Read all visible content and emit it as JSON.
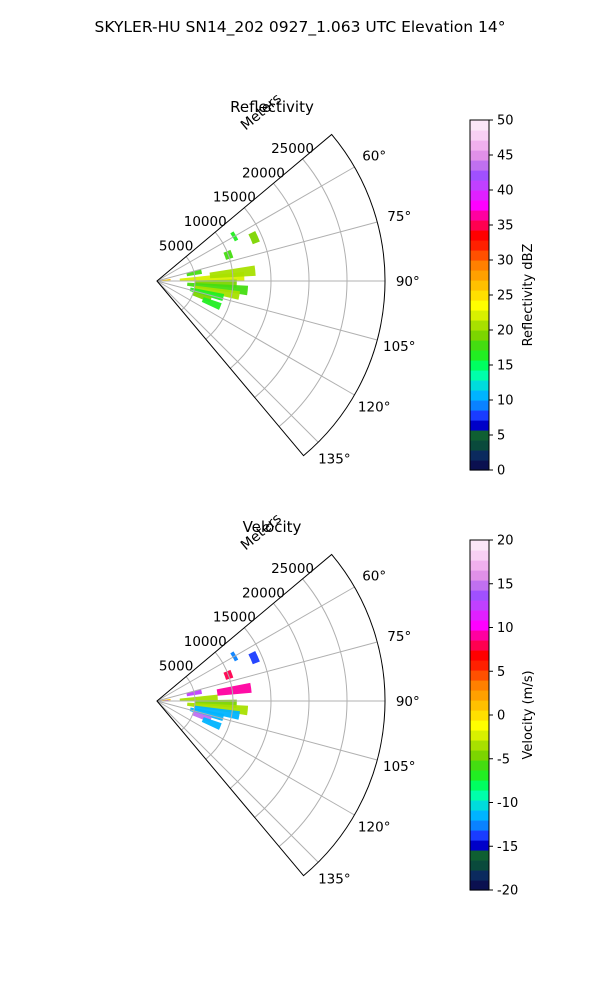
{
  "figure": {
    "suptitle": "SKYLER-HU  SN14_202  0927_1.063 UTC Elevation 14°"
  },
  "chart_data": [
    {
      "type": "polar-sector-heatmap",
      "title": "Reflectivity",
      "radial_axis_label": "Meters",
      "radial_ticks": [
        "5000",
        "10000",
        "15000",
        "20000",
        "25000"
      ],
      "radial_tick_values": [
        5000,
        10000,
        15000,
        20000,
        25000
      ],
      "rlim": [
        0,
        30000
      ],
      "azimuth_ticks": [
        "60°",
        "75°",
        "90°",
        "105°",
        "120°",
        "135°"
      ],
      "azimuth_tick_values": [
        60,
        75,
        90,
        105,
        120,
        135
      ],
      "azimuth_range": [
        50,
        140
      ],
      "grid": true,
      "colorbar": {
        "label": "Reflectivity dBZ",
        "ticks": [
          "0",
          "5",
          "10",
          "15",
          "20",
          "25",
          "30",
          "35",
          "40",
          "45",
          "50"
        ],
        "range": [
          0,
          50
        ],
        "colors": [
          "#0b1050",
          "#0b2a5e",
          "#0a4a3c",
          "#0f5f32",
          "#0000c8",
          "#1a3cff",
          "#0a82ff",
          "#00b4ff",
          "#00dcdc",
          "#00ffaa",
          "#00ff60",
          "#22ee22",
          "#44dd11",
          "#7cd500",
          "#a8e000",
          "#d8f000",
          "#ffff00",
          "#ffe000",
          "#ffc000",
          "#ffa000",
          "#ff8000",
          "#ff5000",
          "#ff2000",
          "#ff0000",
          "#ff0050",
          "#ff00a0",
          "#ff00ff",
          "#e020ff",
          "#c040ff",
          "#a050ff",
          "#c070f0",
          "#e090e8",
          "#f0b0ee",
          "#f8d0f4",
          "#fbe6f8"
        ]
      },
      "echo_regions": [
        {
          "az": 84,
          "r": [
            0,
            1800
          ],
          "level": 27
        },
        {
          "az": 88,
          "r": [
            0,
            1500
          ],
          "level": 24
        },
        {
          "az": 78,
          "r": [
            4000,
            6000
          ],
          "level": 18
        },
        {
          "az": 87,
          "r": [
            3000,
            11500
          ],
          "level": 22
        },
        {
          "az": 84,
          "r": [
            7000,
            13000
          ],
          "level": 20
        },
        {
          "az": 92,
          "r": [
            5000,
            10500
          ],
          "level": 19
        },
        {
          "az": 96,
          "r": [
            4000,
            12000
          ],
          "level": 18
        },
        {
          "az": 100,
          "r": [
            5000,
            11000
          ],
          "level": 20
        },
        {
          "az": 104,
          "r": [
            4500,
            9000
          ],
          "level": 17
        },
        {
          "az": 109,
          "r": [
            5000,
            7500
          ],
          "level": 19
        },
        {
          "az": 112,
          "r": [
            6500,
            9000
          ],
          "level": 16
        },
        {
          "az": 70,
          "r": [
            9500,
            10500
          ],
          "level": 18
        },
        {
          "az": 66,
          "r": [
            13500,
            14500
          ],
          "level": 19
        },
        {
          "az": 60,
          "r": [
            11500,
            12000
          ],
          "level": 16
        }
      ]
    },
    {
      "type": "polar-sector-heatmap",
      "title": "Velocity",
      "radial_axis_label": "Meters",
      "radial_ticks": [
        "5000",
        "10000",
        "15000",
        "20000",
        "25000"
      ],
      "radial_tick_values": [
        5000,
        10000,
        15000,
        20000,
        25000
      ],
      "rlim": [
        0,
        30000
      ],
      "azimuth_ticks": [
        "60°",
        "75°",
        "90°",
        "105°",
        "120°",
        "135°"
      ],
      "azimuth_tick_values": [
        60,
        75,
        90,
        105,
        120,
        135
      ],
      "azimuth_range": [
        50,
        140
      ],
      "grid": true,
      "colorbar": {
        "label": "Velocity (m/s)",
        "ticks": [
          "-20",
          "-15",
          "-10",
          "-5",
          "0",
          "5",
          "10",
          "15",
          "20"
        ],
        "range": [
          -20,
          20
        ],
        "colors": [
          "#0b1050",
          "#0b2a5e",
          "#0a4a3c",
          "#0f5f32",
          "#0000c8",
          "#1a3cff",
          "#0a82ff",
          "#00b4ff",
          "#00dcdc",
          "#00ffaa",
          "#00ff60",
          "#22ee22",
          "#44dd11",
          "#7cd500",
          "#a8e000",
          "#d8f000",
          "#ffff00",
          "#ffe000",
          "#ffc000",
          "#ffa000",
          "#ff8000",
          "#ff5000",
          "#ff2000",
          "#ff0000",
          "#ff0050",
          "#ff00a0",
          "#ff00ff",
          "#e020ff",
          "#c040ff",
          "#a050ff",
          "#c070f0",
          "#e090e8",
          "#f0b0ee",
          "#f8d0f4",
          "#fbe6f8"
        ]
      },
      "echo_regions": [
        {
          "az": 84,
          "r": [
            0,
            1800
          ],
          "level": 1
        },
        {
          "az": 88,
          "r": [
            0,
            1500
          ],
          "level": 13
        },
        {
          "az": 78,
          "r": [
            4000,
            6000
          ],
          "level": 13
        },
        {
          "az": 87,
          "r": [
            3000,
            8000
          ],
          "level": -4
        },
        {
          "az": 82,
          "r": [
            8000,
            12500
          ],
          "level": 9
        },
        {
          "az": 92,
          "r": [
            5000,
            10500
          ],
          "level": -5
        },
        {
          "az": 96,
          "r": [
            4000,
            12000
          ],
          "level": -4
        },
        {
          "az": 100,
          "r": [
            5000,
            11000
          ],
          "level": -11
        },
        {
          "az": 104,
          "r": [
            4500,
            9000
          ],
          "level": -12
        },
        {
          "az": 109,
          "r": [
            5000,
            7500
          ],
          "level": 15
        },
        {
          "az": 112,
          "r": [
            6500,
            9000
          ],
          "level": -11
        },
        {
          "az": 70,
          "r": [
            9500,
            10500
          ],
          "level": 8
        },
        {
          "az": 66,
          "r": [
            13500,
            14500
          ],
          "level": -14
        },
        {
          "az": 60,
          "r": [
            11500,
            12000
          ],
          "level": -13
        }
      ]
    }
  ]
}
